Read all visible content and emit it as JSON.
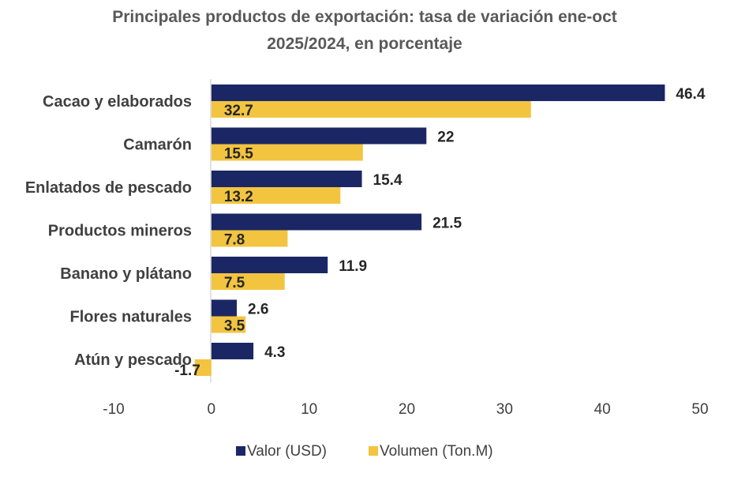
{
  "chart_data": {
    "type": "bar",
    "orientation": "horizontal",
    "title": [
      "Principales productos de exportación: tasa de variación ene-oct",
      "2025/2024, en porcentaje"
    ],
    "categories": [
      "Cacao y elaborados",
      "Camarón",
      "Enlatados de pescado",
      "Productos mineros",
      "Banano y plátano",
      "Flores naturales",
      "Atún y pescado"
    ],
    "series": [
      {
        "name": "Valor (USD)",
        "color": "#1B2765",
        "values": [
          46.4,
          22,
          15.4,
          21.5,
          11.9,
          2.6,
          4.3
        ],
        "labels": [
          "46.4",
          "22",
          "15.4",
          "21.5",
          "11.9",
          "2.6",
          "4.3"
        ]
      },
      {
        "name": "Volumen (Ton.M)",
        "color": "#F2C440",
        "values": [
          32.7,
          15.5,
          13.2,
          7.8,
          7.5,
          3.5,
          -1.7
        ],
        "labels": [
          "32.7",
          "15.5",
          "13.2",
          "7.8",
          "7.5",
          "3.5",
          "-1.7"
        ]
      }
    ],
    "xlim": [
      -10,
      50
    ],
    "xticks": [
      "-10",
      "0",
      "10",
      "20",
      "30",
      "40",
      "50"
    ],
    "legend_position": "bottom",
    "grid": false
  }
}
